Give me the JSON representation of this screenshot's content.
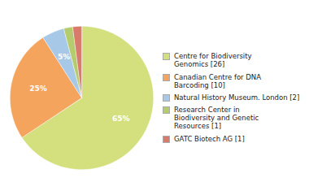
{
  "chart_data": {
    "type": "pie",
    "categories": [
      "Centre for Biodiversity\nGenomics [26]",
      "Canadian Centre for DNA\nBarcoding [10]",
      "Natural History Museum. London [2]",
      "Research Center in\nBiodiversity and Genetic\nResources [1]",
      "GATC Biotech AG [1]"
    ],
    "values": [
      65,
      25,
      5,
      2,
      2
    ],
    "value_labels": [
      "65%",
      "25%",
      "5%",
      null,
      null
    ],
    "colors": [
      "#d4df7e",
      "#f5a45d",
      "#a8c8e8",
      "#b5cc6e",
      "#d97a6a"
    ],
    "data_labels": true,
    "legend": "right"
  }
}
